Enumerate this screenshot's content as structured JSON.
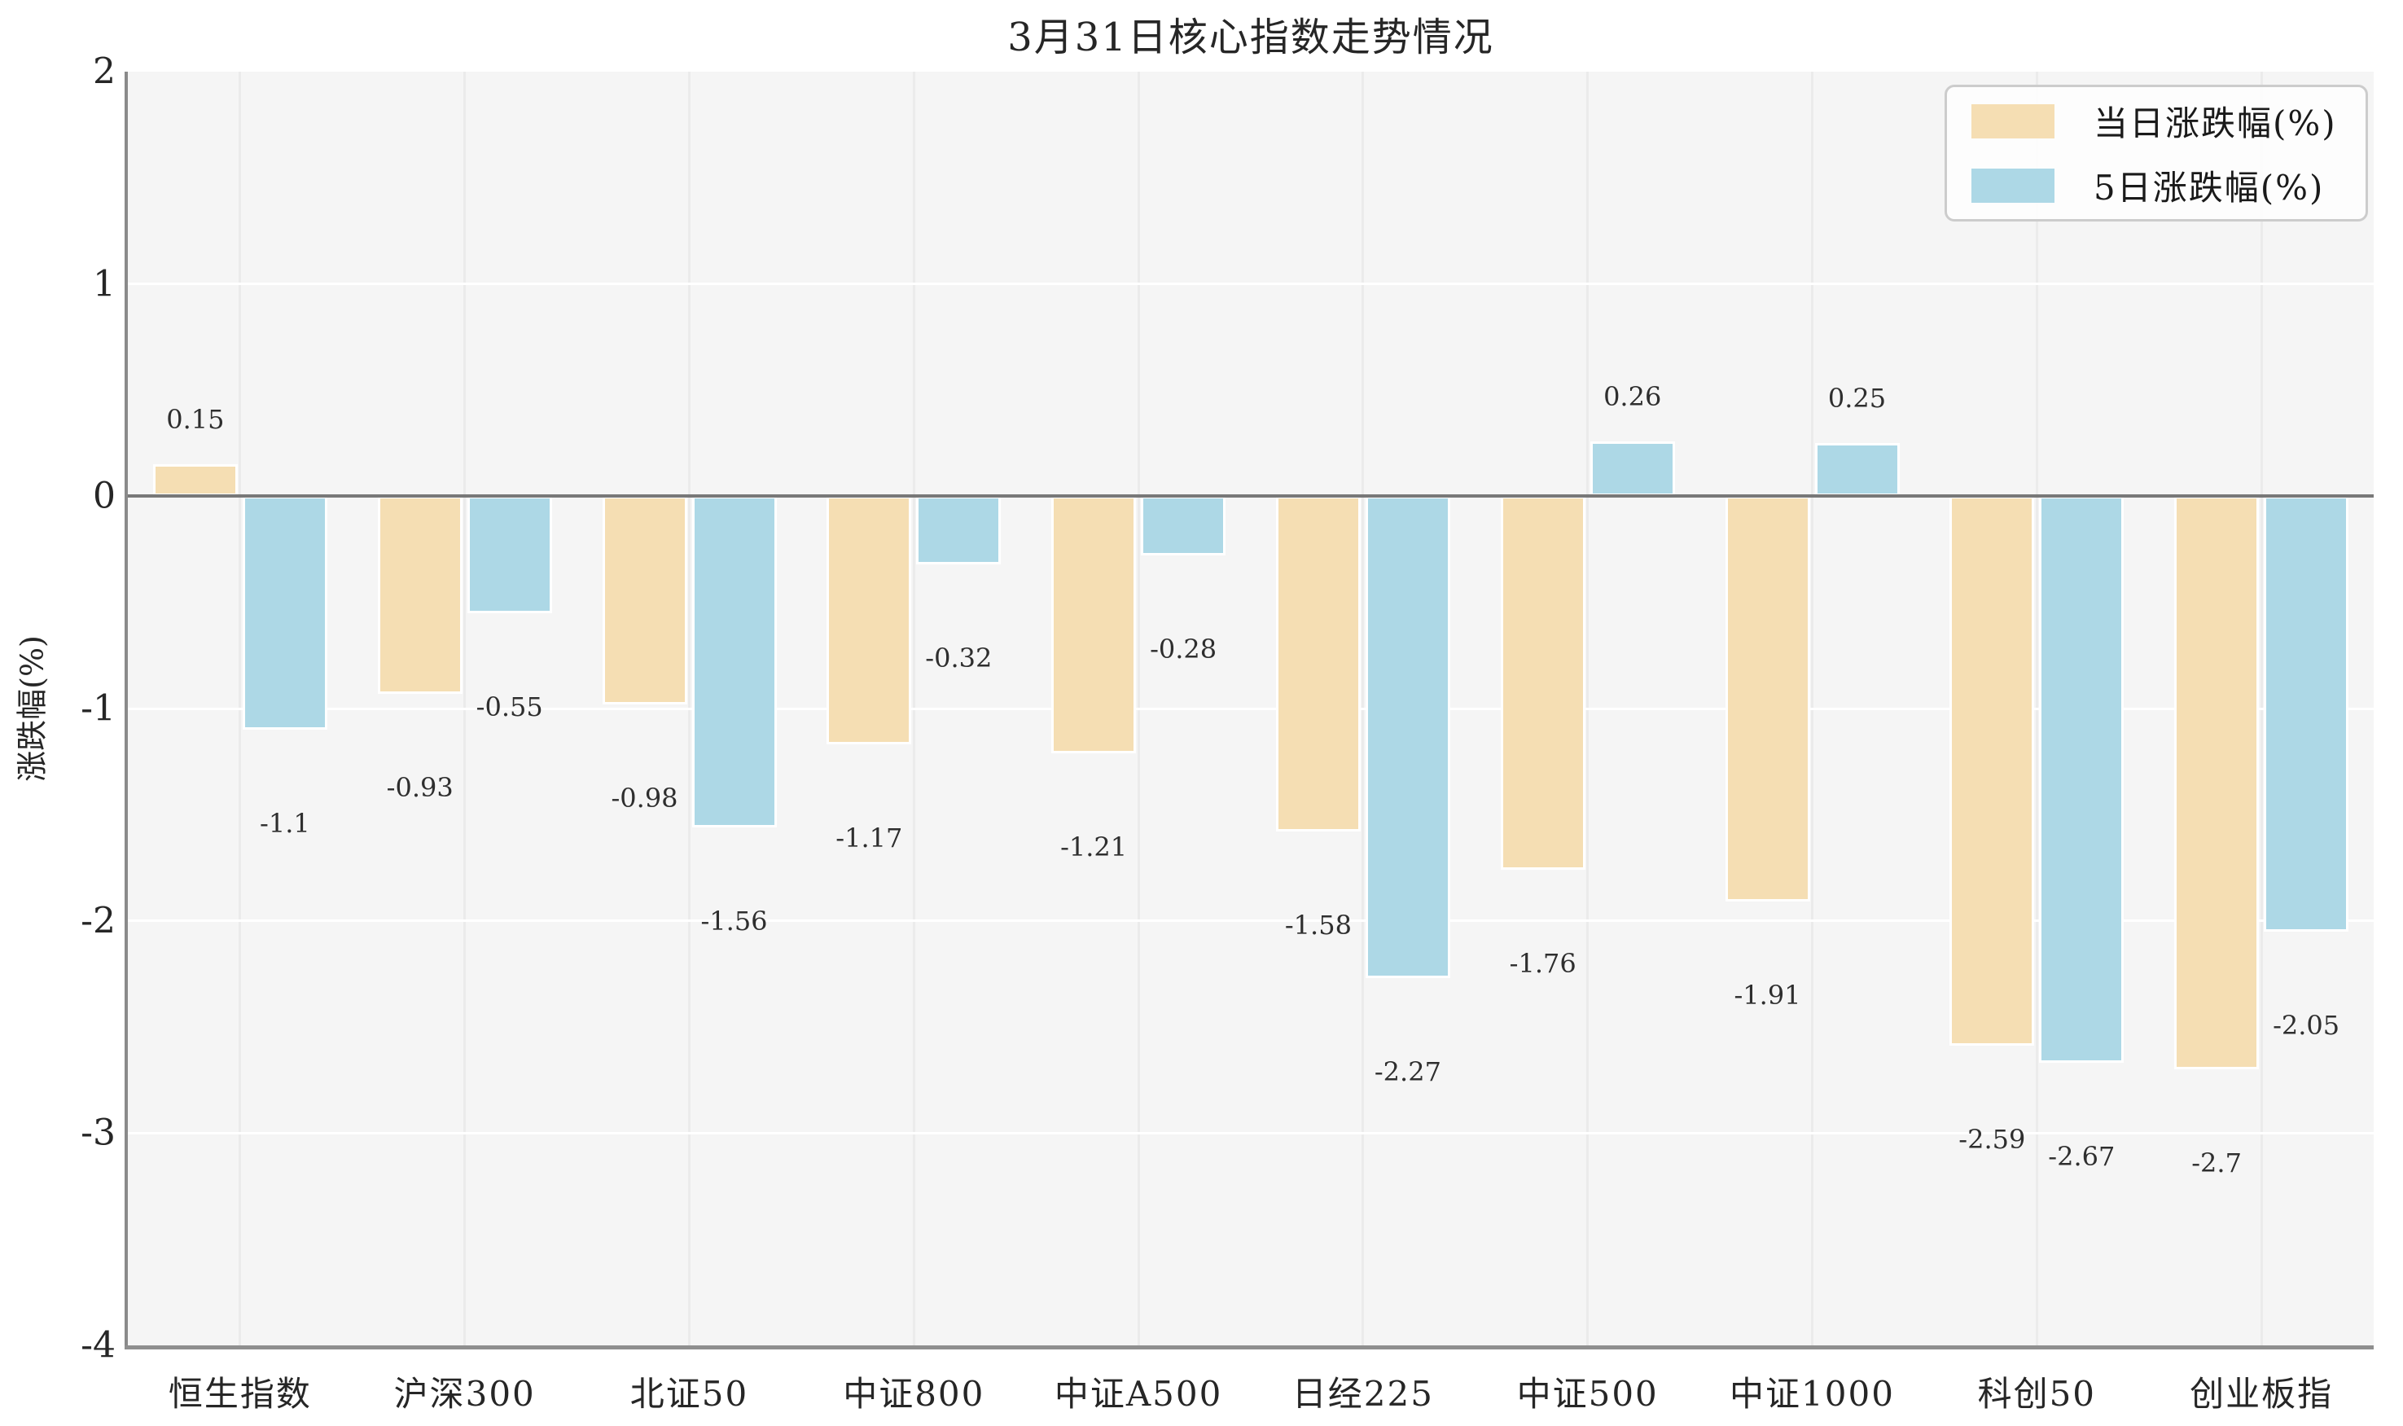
{
  "chart_data": {
    "type": "bar",
    "title": "3月31日核心指数走势情况",
    "ylabel": "涨跌幅(%)",
    "xlabel": "",
    "categories": [
      "恒生指数",
      "沪深300",
      "北证50",
      "中证800",
      "中证A500",
      "日经225",
      "中证500",
      "中证1000",
      "科创50",
      "创业板指"
    ],
    "series": [
      {
        "name": "当日涨跌幅(%)",
        "color": "#F5DEB3",
        "values": [
          0.15,
          -0.93,
          -0.98,
          -1.17,
          -1.21,
          -1.58,
          -1.76,
          -1.91,
          -2.59,
          -2.7
        ]
      },
      {
        "name": "5日涨跌幅(%)",
        "color": "#ADD8E6",
        "values": [
          -1.1,
          -0.55,
          -1.56,
          -0.32,
          -0.28,
          -2.27,
          0.26,
          0.25,
          -2.67,
          -2.05
        ]
      }
    ],
    "ylim": [
      -4,
      2
    ],
    "yticks": [
      2,
      1,
      0,
      -1,
      -2,
      -3,
      -4
    ],
    "grid": "on",
    "legend_position": "upper right",
    "plot_background": "#f5f5f5",
    "zero_line_color": "#787878"
  }
}
